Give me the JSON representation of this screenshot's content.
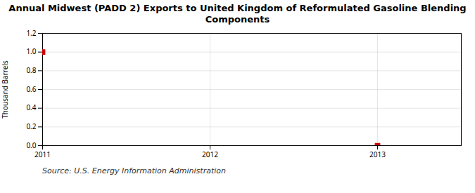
{
  "chart_data": {
    "type": "scatter",
    "title": "Annual Midwest (PADD 2) Exports to United Kingdom of Reformulated Gasoline Blending\nComponents",
    "ylabel": "Thousand Barrels",
    "annotations": [
      "Source: U.S. Energy Information Administration"
    ],
    "x": [
      2011,
      2013
    ],
    "values": [
      1.0,
      0.0
    ],
    "color": "#cc0000",
    "marker": "square",
    "xlim": [
      2011.0,
      2013.5
    ],
    "xticks": [
      2011,
      2012,
      2013
    ],
    "ylim": [
      0.0,
      1.2
    ],
    "yticks": [
      {
        "value": 0.0,
        "label": "0.0"
      },
      0.2,
      0.4,
      0.6,
      0.8,
      {
        "value": 1.0,
        "label": "1.0"
      },
      1.2
    ],
    "grid": true
  }
}
